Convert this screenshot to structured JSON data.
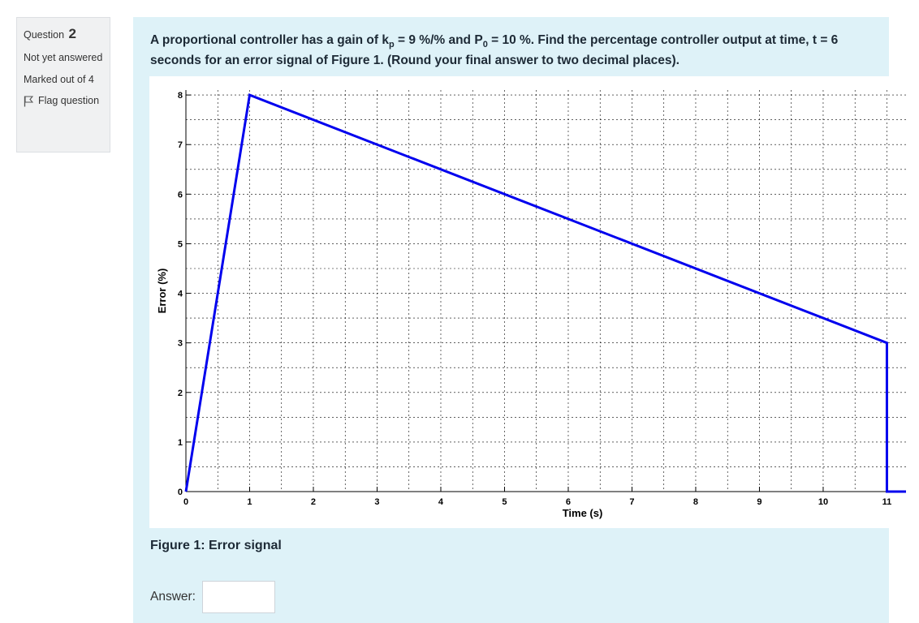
{
  "sidebar": {
    "question_label": "Question",
    "question_number": "2",
    "status": "Not yet answered",
    "marked": "Marked out of 4",
    "flag_label": "Flag question"
  },
  "question": {
    "text_part1": "A proportional controller has a gain of k",
    "kp_sub": "p",
    "text_part2": " = 9 %/% and P",
    "p0_sub": "0",
    "text_part3": " = 10 %. Find the percentage controller output at time, t = 6 seconds for an error signal of Figure 1. (Round your final answer to two decimal places).",
    "caption": "Figure 1: Error signal",
    "answer_label": "Answer:",
    "answer_value": ""
  },
  "chart_data": {
    "type": "line",
    "xlabel": "Time (s)",
    "ylabel": "Error (%)",
    "xlim": [
      0,
      11.3
    ],
    "ylim": [
      0,
      8.1
    ],
    "x_ticks": [
      0,
      1,
      2,
      3,
      4,
      5,
      6,
      7,
      8,
      9,
      10,
      11
    ],
    "y_ticks": [
      0,
      1,
      2,
      3,
      4,
      5,
      6,
      7,
      8
    ],
    "grid": "dashed, major and minor (0.5)",
    "series": [
      {
        "x": [
          0,
          1,
          11,
          11,
          11.3
        ],
        "y": [
          0,
          8,
          3,
          0,
          0
        ],
        "color": "#0000ee"
      }
    ]
  }
}
